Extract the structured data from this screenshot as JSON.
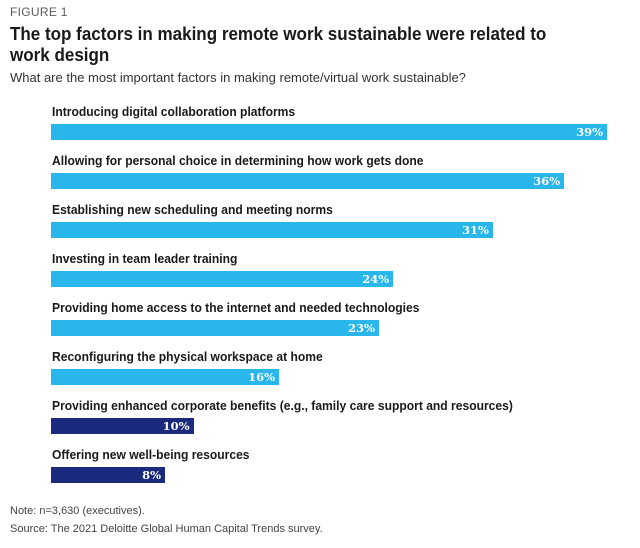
{
  "figure_label": "FIGURE 1",
  "colors": {
    "light": "#29b6ea",
    "dark": "#1c2a7d"
  },
  "chart_data": {
    "type": "bar",
    "orientation": "horizontal",
    "title": "The top factors in making remote work sustainable were related to work design",
    "subtitle": "What are the most important factors in making remote/virtual work sustainable?",
    "categories": [
      "Introducing digital collaboration platforms",
      "Allowing for personal choice in determining how work gets done",
      "Establishing new scheduling and meeting norms",
      "Investing in team leader training",
      "Providing home access to the internet and needed technologies",
      "Reconfiguring the physical workspace at home",
      "Providing enhanced corporate benefits (e.g., family care support and resources)",
      "Offering new well-being resources"
    ],
    "values": [
      39,
      36,
      31,
      24,
      23,
      16,
      10,
      8
    ],
    "value_labels": [
      "39%",
      "36%",
      "31%",
      "24%",
      "23%",
      "16%",
      "10%",
      "8%"
    ],
    "bar_colors": [
      "light",
      "light",
      "light",
      "light",
      "light",
      "light",
      "dark",
      "dark"
    ],
    "unit": "%",
    "xlim": [
      0,
      39
    ]
  },
  "note": "Note: n=3,630 (executives).",
  "source": "Source: The 2021 Deloitte Global Human Capital Trends survey."
}
